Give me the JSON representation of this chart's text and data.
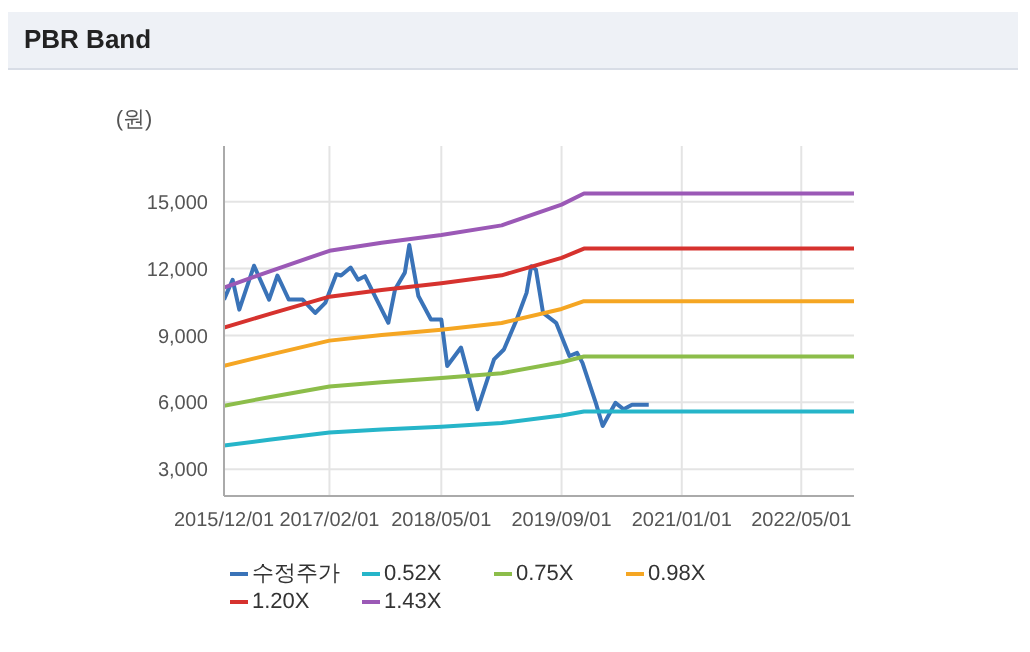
{
  "chart_data": {
    "type": "line",
    "title": "PBR Band",
    "ylabel": "(원)",
    "xlim": [
      "2015-12-01",
      "2022-12-01"
    ],
    "xticks": [
      {
        "value": "2015-12-01",
        "label": "2015/12/01"
      },
      {
        "value": "2017-02-01",
        "label": "2017/02/01"
      },
      {
        "value": "2018-05-01",
        "label": "2018/05/01"
      },
      {
        "value": "2019-09-01",
        "label": "2019/09/01"
      },
      {
        "value": "2021-01-01",
        "label": "2021/01/01"
      },
      {
        "value": "2022-05-01",
        "label": "2022/05/01"
      }
    ],
    "ylim": [
      1800,
      17500
    ],
    "yticks": [
      {
        "value": 3000,
        "label": "3,000"
      },
      {
        "value": 6000,
        "label": "6,000"
      },
      {
        "value": 9000,
        "label": "9,000"
      },
      {
        "value": 12000,
        "label": "12,000"
      },
      {
        "value": 15000,
        "label": "15,000"
      }
    ],
    "grid": true,
    "legend": "bottom",
    "marker": "none",
    "line_style": "solid",
    "series": [
      {
        "name": "수정주가",
        "color": "#3a73b8",
        "x": [
          "2015-12-01",
          "2016-01-05",
          "2016-02-01",
          "2016-04-01",
          "2016-06-01",
          "2016-07-05",
          "2016-08-20",
          "2016-10-15",
          "2016-12-05",
          "2017-01-15",
          "2017-03-01",
          "2017-03-20",
          "2017-04-28",
          "2017-05-28",
          "2017-06-25",
          "2017-09-28",
          "2017-10-25",
          "2017-12-04",
          "2017-12-22",
          "2018-01-28",
          "2018-03-20",
          "2018-05-01",
          "2018-05-25",
          "2018-07-20",
          "2018-09-25",
          "2018-12-01",
          "2019-01-10",
          "2019-03-03",
          "2019-04-12",
          "2019-05-01",
          "2019-05-20",
          "2019-06-18",
          "2019-08-10",
          "2019-10-03",
          "2019-11-03",
          "2019-11-25",
          "2020-01-18",
          "2020-02-15",
          "2020-04-07",
          "2020-05-10",
          "2020-06-13",
          "2020-08-20"
        ],
        "values": [
          10610,
          11500,
          10160,
          12130,
          10610,
          11690,
          10610,
          10610,
          10010,
          10460,
          11750,
          11690,
          12050,
          11500,
          11660,
          9570,
          11060,
          11820,
          13060,
          10770,
          9720,
          9720,
          7630,
          8460,
          5690,
          7930,
          8370,
          9720,
          10910,
          12110,
          11960,
          10010,
          9570,
          8080,
          8220,
          7770,
          5980,
          4940,
          5980,
          5690,
          5890,
          5890
        ]
      },
      {
        "name": "0.52X",
        "color": "#26b5c9",
        "x": [
          "2015-12-01",
          "2016-06-01",
          "2017-02-01",
          "2017-09-01",
          "2018-05-01",
          "2019-01-01",
          "2019-09-01",
          "2019-12-01",
          "2022-12-01"
        ],
        "values": [
          4060,
          4320,
          4650,
          4780,
          4910,
          5070,
          5410,
          5590,
          5590
        ]
      },
      {
        "name": "0.75X",
        "color": "#8cbd4a",
        "x": [
          "2015-12-01",
          "2016-06-01",
          "2017-02-01",
          "2017-09-01",
          "2018-05-01",
          "2019-01-01",
          "2019-09-01",
          "2019-12-01",
          "2022-12-01"
        ],
        "values": [
          5850,
          6230,
          6710,
          6900,
          7090,
          7310,
          7800,
          8060,
          8060
        ]
      },
      {
        "name": "0.98X",
        "color": "#f5a623",
        "x": [
          "2015-12-01",
          "2016-06-01",
          "2017-02-01",
          "2017-09-01",
          "2018-05-01",
          "2019-01-01",
          "2019-09-01",
          "2019-12-01",
          "2022-12-01"
        ],
        "values": [
          7640,
          8130,
          8770,
          9020,
          9260,
          9560,
          10190,
          10540,
          10540
        ]
      },
      {
        "name": "1.20X",
        "color": "#d6322e",
        "x": [
          "2015-12-01",
          "2016-06-01",
          "2017-02-01",
          "2017-09-01",
          "2018-05-01",
          "2019-01-01",
          "2019-09-01",
          "2019-12-01",
          "2022-12-01"
        ],
        "values": [
          9360,
          9960,
          10740,
          11040,
          11340,
          11700,
          12480,
          12900,
          12900
        ]
      },
      {
        "name": "1.43X",
        "color": "#9b59b6",
        "x": [
          "2015-12-01",
          "2016-06-01",
          "2017-02-01",
          "2017-09-01",
          "2018-05-01",
          "2019-01-01",
          "2019-09-01",
          "2019-12-01",
          "2022-12-01"
        ],
        "values": [
          11150,
          11870,
          12800,
          13160,
          13510,
          13940,
          14870,
          15370,
          15370
        ]
      }
    ]
  }
}
